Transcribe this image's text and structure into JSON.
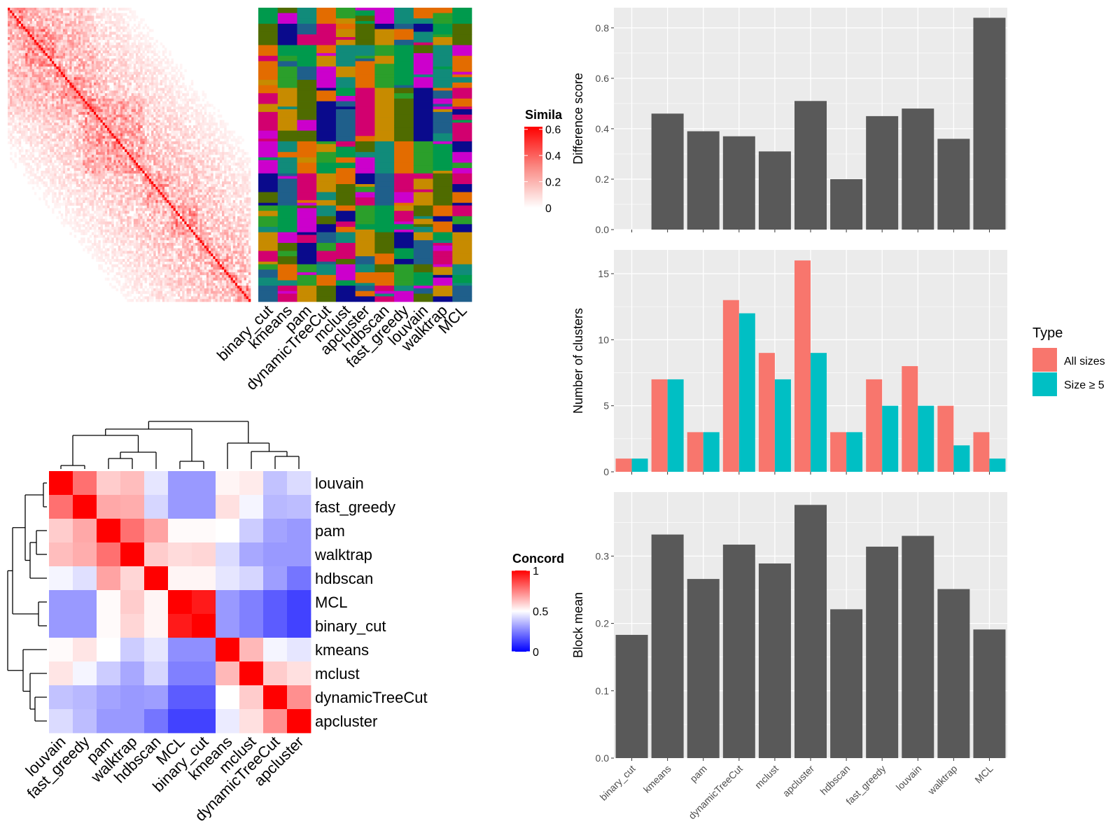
{
  "colors": {
    "panel_bg": "#ebebeb",
    "grid": "#ffffff",
    "bar_dark": "#595959",
    "all_sizes": "#f8766d",
    "size_ge5": "#00bfc4",
    "sim_high": "#ff0000",
    "sim_low": "#ffffff",
    "conc_high": "#ff0000",
    "conc_mid": "#ffffff",
    "conc_low": "#0000ff",
    "cluster_palette": [
      "#009a4d",
      "#c78b00",
      "#cc00cc",
      "#4f6b00",
      "#118b7a",
      "#0a0a8c",
      "#e36c00",
      "#1f5f8b",
      "#2b9f2b",
      "#d2006f"
    ]
  },
  "similarity_heatmap": {
    "legend_title": "Simila",
    "legend_ticks": [
      "0.6",
      "0.4",
      "0.2",
      "0"
    ],
    "legend_tick_values": [
      0.6,
      0.4,
      0.2,
      0.0
    ]
  },
  "cluster_assignment": {
    "methods": [
      "binary_cut",
      "kmeans",
      "pam",
      "dynamicTreeCut",
      "mclust",
      "apcluster",
      "hdbscan",
      "fast_greedy",
      "louvain",
      "walktrap",
      "MCL"
    ]
  },
  "concordance_heatmap": {
    "legend_title": "Concord",
    "legend_ticks": [
      "1",
      "0.5",
      "0"
    ],
    "legend_tick_values": [
      1,
      0.5,
      0
    ],
    "row_labels": [
      "louvain",
      "fast_greedy",
      "pam",
      "walktrap",
      "hdbscan",
      "MCL",
      "binary_cut",
      "kmeans",
      "mclust",
      "dynamicTreeCut",
      "apcluster"
    ],
    "col_labels": [
      "louvain",
      "fast_greedy",
      "pam",
      "walktrap",
      "hdbscan",
      "MCL",
      "binary_cut",
      "kmeans",
      "mclust",
      "dynamicTreeCut",
      "apcluster"
    ],
    "matrix": [
      [
        1.0,
        0.78,
        0.6,
        0.63,
        0.45,
        0.3,
        0.3,
        0.52,
        0.54,
        0.38,
        0.43
      ],
      [
        0.78,
        1.0,
        0.67,
        0.66,
        0.42,
        0.3,
        0.3,
        0.56,
        0.48,
        0.36,
        0.37
      ],
      [
        0.6,
        0.67,
        1.0,
        0.78,
        0.68,
        0.51,
        0.51,
        0.5,
        0.4,
        0.32,
        0.3
      ],
      [
        0.63,
        0.66,
        0.78,
        1.0,
        0.6,
        0.57,
        0.58,
        0.43,
        0.33,
        0.3,
        0.3
      ],
      [
        0.48,
        0.44,
        0.68,
        0.58,
        1.0,
        0.52,
        0.52,
        0.45,
        0.42,
        0.31,
        0.23
      ],
      [
        0.3,
        0.3,
        0.51,
        0.6,
        0.52,
        1.0,
        0.95,
        0.3,
        0.25,
        0.18,
        0.13
      ],
      [
        0.3,
        0.3,
        0.51,
        0.58,
        0.52,
        0.95,
        1.0,
        0.3,
        0.25,
        0.18,
        0.13
      ],
      [
        0.51,
        0.55,
        0.5,
        0.4,
        0.45,
        0.28,
        0.28,
        1.0,
        0.64,
        0.48,
        0.45
      ],
      [
        0.55,
        0.48,
        0.4,
        0.33,
        0.42,
        0.25,
        0.25,
        0.64,
        1.0,
        0.6,
        0.56
      ],
      [
        0.38,
        0.36,
        0.32,
        0.3,
        0.31,
        0.18,
        0.18,
        0.5,
        0.6,
        1.0,
        0.72
      ],
      [
        0.43,
        0.37,
        0.3,
        0.3,
        0.23,
        0.13,
        0.13,
        0.46,
        0.56,
        0.72,
        1.0
      ]
    ]
  },
  "chart_data": [
    {
      "type": "bar",
      "categories": [
        "binary_cut",
        "kmeans",
        "pam",
        "dynamicTreeCut",
        "mclust",
        "apcluster",
        "hdbscan",
        "fast_greedy",
        "louvain",
        "walktrap",
        "MCL"
      ],
      "values": [
        0.0,
        0.46,
        0.39,
        0.37,
        0.31,
        0.51,
        0.2,
        0.45,
        0.48,
        0.36,
        0.84
      ],
      "xlabel": "",
      "ylabel": "Difference score",
      "ylim": [
        0,
        0.88
      ],
      "yticks": [
        "0.0",
        "0.2",
        "0.4",
        "0.6",
        "0.8"
      ],
      "ytick_values": [
        0,
        0.2,
        0.4,
        0.6,
        0.8
      ],
      "grid": true
    },
    {
      "type": "bar",
      "categories": [
        "binary_cut",
        "kmeans",
        "pam",
        "dynamicTreeCut",
        "mclust",
        "apcluster",
        "hdbscan",
        "fast_greedy",
        "louvain",
        "walktrap",
        "MCL"
      ],
      "series": [
        {
          "name": "All sizes",
          "values": [
            1,
            7,
            3,
            13,
            9,
            16,
            3,
            7,
            8,
            5,
            3
          ]
        },
        {
          "name": "Size ≥ 5",
          "values": [
            1,
            7,
            3,
            12,
            7,
            9,
            3,
            5,
            5,
            2,
            1
          ]
        }
      ],
      "xlabel": "",
      "ylabel": "Number of clusters",
      "ylim": [
        0,
        16.8
      ],
      "yticks": [
        "0",
        "5",
        "10",
        "15"
      ],
      "ytick_values": [
        0,
        5,
        10,
        15
      ],
      "legend_title": "Type",
      "legend_position": "right",
      "grid": true
    },
    {
      "type": "bar",
      "categories": [
        "binary_cut",
        "kmeans",
        "pam",
        "dynamicTreeCut",
        "mclust",
        "apcluster",
        "hdbscan",
        "fast_greedy",
        "louvain",
        "walktrap",
        "MCL"
      ],
      "values": [
        0.183,
        0.332,
        0.266,
        0.317,
        0.289,
        0.376,
        0.221,
        0.314,
        0.33,
        0.251,
        0.191
      ],
      "xlabel": "",
      "ylabel": "Block mean",
      "ylim": [
        0,
        0.395
      ],
      "yticks": [
        "0.0",
        "0.1",
        "0.2",
        "0.3"
      ],
      "ytick_values": [
        0,
        0.1,
        0.2,
        0.3
      ],
      "grid": true
    }
  ]
}
